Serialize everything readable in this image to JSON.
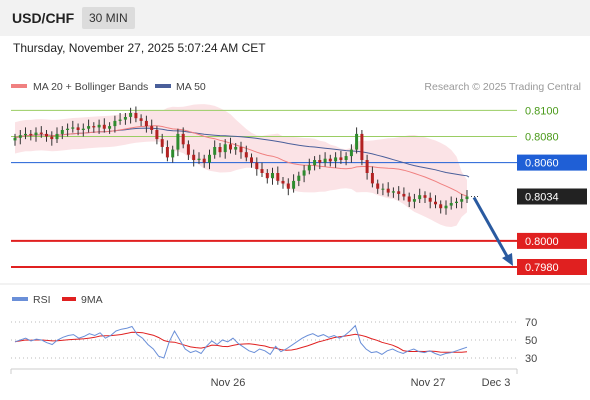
{
  "header": {
    "symbol": "USD/CHF",
    "timeframe": "30 MIN"
  },
  "datetime": "Thursday, November 27, 2025 5:07:24 AM CET",
  "legend": {
    "ma20_label": "MA 20 + Bollinger Bands",
    "ma50_label": "MA 50",
    "copyright": "Research © 2025 Trading Central"
  },
  "colors": {
    "up": "#2e8b2e",
    "down": "#b22222",
    "ma20": "#f08080",
    "ma50": "#4a5f9a",
    "bollinger": "#fadadd",
    "resistance": "#9acd63",
    "pivot": "#1f5fd6",
    "support": "#e02020",
    "arrow": "#2a5aa0",
    "rsi": "#6a8fd8",
    "rsi_ma": "#e02020"
  },
  "chart_data": [
    {
      "type": "candlestick",
      "ylim": [
        0.797,
        0.8108
      ],
      "levels": [
        {
          "label": "0.8100",
          "value": 0.81,
          "kind": "resistance"
        },
        {
          "label": "0.8080",
          "value": 0.808,
          "kind": "resistance"
        },
        {
          "label": "0.8060",
          "value": 0.806,
          "kind": "pivot"
        },
        {
          "label": "0.8034",
          "value": 0.8034,
          "kind": "last"
        },
        {
          "label": "0.8000",
          "value": 0.8,
          "kind": "support"
        },
        {
          "label": "0.7980",
          "value": 0.798,
          "kind": "support"
        }
      ],
      "forecast": {
        "from": 0.8034,
        "to": 0.798,
        "direction": "down"
      },
      "close": [
        0.8079,
        0.8081,
        0.8082,
        0.8081,
        0.8083,
        0.8082,
        0.808,
        0.8078,
        0.8082,
        0.8085,
        0.8086,
        0.8087,
        0.8085,
        0.8086,
        0.8088,
        0.8087,
        0.8089,
        0.8086,
        0.8088,
        0.8092,
        0.8093,
        0.8095,
        0.8098,
        0.8094,
        0.8092,
        0.8088,
        0.8085,
        0.8078,
        0.8072,
        0.8064,
        0.807,
        0.8082,
        0.8074,
        0.8066,
        0.8062,
        0.8063,
        0.806,
        0.8066,
        0.8072,
        0.8068,
        0.8074,
        0.807,
        0.8072,
        0.8068,
        0.8064,
        0.806,
        0.8055,
        0.8052,
        0.8048,
        0.8052,
        0.8046,
        0.8044,
        0.804,
        0.8046,
        0.805,
        0.8054,
        0.8058,
        0.8062,
        0.806,
        0.8063,
        0.8061,
        0.8064,
        0.8062,
        0.8065,
        0.807,
        0.8082,
        0.8062,
        0.8052,
        0.8044,
        0.804,
        0.804,
        0.8037,
        0.8038,
        0.8036,
        0.8034,
        0.803,
        0.8032,
        0.8035,
        0.8033,
        0.803,
        0.8028,
        0.8025,
        0.8027,
        0.8029,
        0.803,
        0.8032,
        0.8034
      ]
    },
    {
      "type": "line",
      "title": "RSI",
      "series": [
        {
          "name": "RSI"
        },
        {
          "name": "9MA"
        }
      ],
      "ylim": [
        20,
        80
      ],
      "yticks": [
        70,
        50,
        30
      ],
      "x_ticks": [
        "Nov 26",
        "Nov 27",
        "Dec 3"
      ],
      "rsi": [
        48,
        50,
        52,
        49,
        51,
        50,
        47,
        45,
        50,
        53,
        55,
        56,
        52,
        54,
        57,
        55,
        58,
        52,
        55,
        60,
        62,
        63,
        65,
        56,
        52,
        45,
        40,
        32,
        30,
        48,
        60,
        50,
        40,
        36,
        38,
        35,
        43,
        49,
        45,
        50,
        48,
        52,
        46,
        42,
        38,
        36,
        40,
        38,
        34,
        43,
        37,
        40,
        44,
        48,
        52,
        55,
        57,
        54,
        56,
        53,
        55,
        52,
        55,
        60,
        66,
        47,
        40,
        36,
        37,
        34,
        38,
        40,
        37,
        35,
        38,
        40,
        37,
        36,
        38,
        35,
        33,
        35,
        36,
        38,
        40,
        42
      ]
    }
  ]
}
